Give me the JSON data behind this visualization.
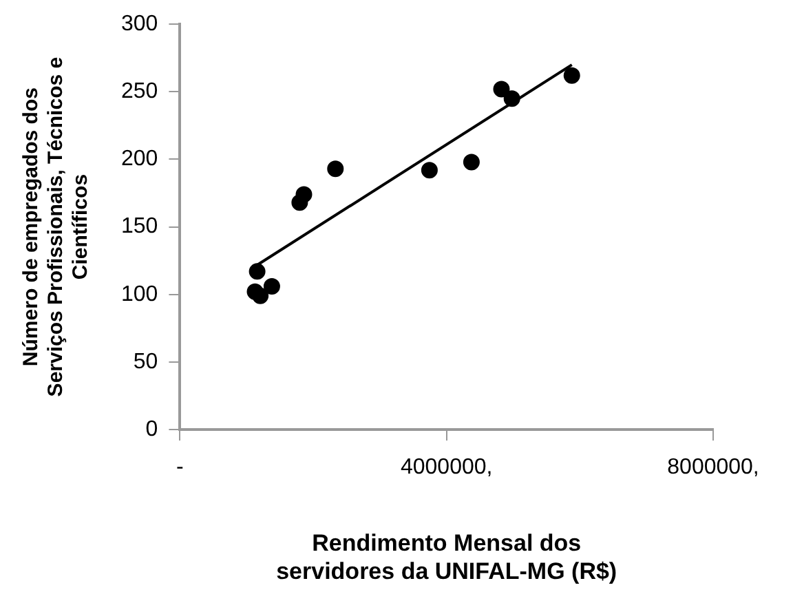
{
  "chart_data": {
    "type": "scatter",
    "xlabel": "Rendimento Mensal dos servidores da UNIFAL-MG (R$)",
    "ylabel": "Número de empregados dos Serviços Profissionais, Técnicos e Científicos",
    "x": [
      1127000,
      1206000,
      1379000,
      1159000,
      1797000,
      1860000,
      2333000,
      3744000,
      4374000,
      4824000,
      4981000,
      5880000
    ],
    "series": [
      {
        "color": "#000000",
        "values": [
          102,
          99,
          106,
          117,
          168,
          174,
          193,
          192,
          198,
          252,
          245,
          262
        ]
      },
      {
        "type": "line",
        "marker": "none",
        "color": "#000000",
        "x": [
          1167000,
          5880000
        ],
        "values": [
          122,
          270
        ]
      }
    ],
    "xlim": [
      0,
      8000000
    ],
    "xticks": [
      {
        "value": 0,
        "label": "-"
      },
      {
        "value": 4000000,
        "label": "4000000,"
      },
      {
        "value": 8000000,
        "label": "8000000,"
      }
    ],
    "ylim": [
      0,
      300
    ],
    "yticks": [
      0,
      50,
      100,
      150,
      200,
      250,
      300
    ],
    "grid": false,
    "legend": false,
    "marker": "circle",
    "line_style": "solid"
  }
}
